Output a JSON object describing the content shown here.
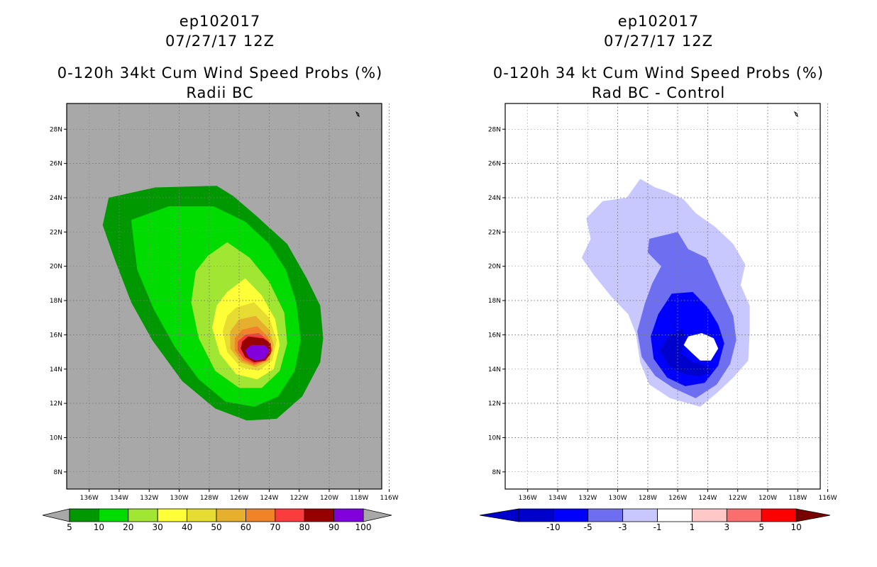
{
  "left_panel": {
    "title_lines": [
      "ep102017",
      "07/27/17 12Z",
      "0-120h 34kt Cum Wind Speed Probs (%)",
      "Radii BC"
    ],
    "background_color": "#a8a8a8",
    "colorbar": {
      "colors": [
        "#009800",
        "#00dc00",
        "#a0e632",
        "#ffff37",
        "#e6dc32",
        "#e6af2d",
        "#f08228",
        "#fa3c3c",
        "#960000",
        "#8200dc"
      ],
      "labels": [
        "5",
        "10",
        "20",
        "30",
        "40",
        "50",
        "60",
        "70",
        "80",
        "90",
        "100"
      ]
    }
  },
  "right_panel": {
    "title_lines": [
      "ep102017",
      "07/27/17 12Z",
      "0-120h 34 kt Cum Wind Speed Probs (%)",
      "Rad BC - Control"
    ],
    "background_color": "#ffffff",
    "colorbar": {
      "colors": [
        "#0000cd",
        "#0000ff",
        "#6e6ef0",
        "#c8c8ff",
        "#ffffff",
        "#ffc8c8",
        "#fa6e6e",
        "#ff0000",
        "#780000"
      ],
      "labels": [
        "-10",
        "-5",
        "-3",
        "-1",
        "1",
        "3",
        "5",
        "10"
      ]
    }
  },
  "axes": {
    "lon_ticks": [
      "136W",
      "134W",
      "132W",
      "130W",
      "128W",
      "126W",
      "124W",
      "122W",
      "120W",
      "118W",
      "116W"
    ],
    "lat_ticks": [
      "8N",
      "10N",
      "12N",
      "14N",
      "16N",
      "18N",
      "20N",
      "22N",
      "24N",
      "26N",
      "28N"
    ]
  },
  "chart_data": [
    {
      "type": "heatmap",
      "title": "0-120h 34kt Cum Wind Speed Probs (%)",
      "subtitle": "Radii BC",
      "storm": "ep102017",
      "valid_time": "07/27/17 12Z",
      "xlim": [
        -137.5,
        -116.5
      ],
      "ylim": [
        7.0,
        29.5
      ],
      "units": "%",
      "contour_levels": [
        5,
        10,
        20,
        30,
        40,
        50,
        60,
        70,
        80,
        90,
        100
      ],
      "regions": [
        {
          "level": 5,
          "polygon": [
            [
              -134.7,
              24.0
            ],
            [
              -131.6,
              24.6
            ],
            [
              -127.5,
              24.7
            ],
            [
              -126.4,
              24.1
            ],
            [
              -124.8,
              22.9
            ],
            [
              -122.8,
              21.3
            ],
            [
              -121.5,
              19.3
            ],
            [
              -120.6,
              17.7
            ],
            [
              -120.4,
              15.8
            ],
            [
              -120.6,
              14.4
            ],
            [
              -121.8,
              12.4
            ],
            [
              -123.5,
              11.1
            ],
            [
              -125.5,
              11.0
            ],
            [
              -127.6,
              11.7
            ],
            [
              -129.8,
              13.3
            ],
            [
              -131.8,
              15.7
            ],
            [
              -133.2,
              17.9
            ],
            [
              -134.3,
              20.4
            ],
            [
              -135.1,
              22.4
            ]
          ]
        },
        {
          "level": 10,
          "polygon": [
            [
              -133.2,
              22.7
            ],
            [
              -130.7,
              23.5
            ],
            [
              -127.7,
              23.5
            ],
            [
              -125.6,
              22.6
            ],
            [
              -124.0,
              21.3
            ],
            [
              -122.9,
              19.8
            ],
            [
              -122.2,
              17.9
            ],
            [
              -121.9,
              15.7
            ],
            [
              -122.3,
              13.9
            ],
            [
              -123.4,
              12.4
            ],
            [
              -125.0,
              11.8
            ],
            [
              -126.9,
              12.1
            ],
            [
              -128.7,
              13.4
            ],
            [
              -130.3,
              15.3
            ],
            [
              -131.7,
              17.5
            ],
            [
              -132.8,
              19.8
            ]
          ]
        },
        {
          "level": 20,
          "polygon": [
            [
              -128.1,
              20.6
            ],
            [
              -126.8,
              21.4
            ],
            [
              -125.3,
              20.5
            ],
            [
              -124.0,
              19.1
            ],
            [
              -123.0,
              17.3
            ],
            [
              -122.8,
              15.5
            ],
            [
              -123.3,
              13.9
            ],
            [
              -124.5,
              12.9
            ],
            [
              -126.0,
              12.9
            ],
            [
              -127.6,
              13.9
            ],
            [
              -128.7,
              15.8
            ],
            [
              -129.2,
              17.9
            ],
            [
              -128.9,
              19.7
            ]
          ]
        },
        {
          "level": 30,
          "polygon": [
            [
              -126.8,
              18.5
            ],
            [
              -125.6,
              19.3
            ],
            [
              -124.5,
              18.3
            ],
            [
              -123.6,
              16.9
            ],
            [
              -123.3,
              15.4
            ],
            [
              -123.7,
              14.0
            ],
            [
              -124.8,
              13.4
            ],
            [
              -126.2,
              13.7
            ],
            [
              -127.3,
              14.9
            ],
            [
              -127.8,
              16.4
            ],
            [
              -127.5,
              17.7
            ]
          ]
        },
        {
          "level": 40,
          "polygon": [
            [
              -126.2,
              17.6
            ],
            [
              -125.0,
              17.9
            ],
            [
              -124.0,
              17.0
            ],
            [
              -123.5,
              15.7
            ],
            [
              -123.8,
              14.5
            ],
            [
              -124.7,
              13.9
            ],
            [
              -125.9,
              14.1
            ],
            [
              -126.8,
              15.0
            ],
            [
              -127.1,
              16.2
            ],
            [
              -126.8,
              17.1
            ]
          ]
        },
        {
          "level": 50,
          "polygon": [
            [
              -126.0,
              16.9
            ],
            [
              -124.9,
              17.1
            ],
            [
              -124.0,
              16.3
            ],
            [
              -123.7,
              15.4
            ],
            [
              -124.0,
              14.5
            ],
            [
              -124.9,
              14.1
            ],
            [
              -125.9,
              14.4
            ],
            [
              -126.6,
              15.2
            ],
            [
              -126.6,
              16.2
            ]
          ]
        },
        {
          "level": 60,
          "polygon": [
            [
              -125.8,
              16.3
            ],
            [
              -124.8,
              16.5
            ],
            [
              -124.1,
              15.9
            ],
            [
              -123.8,
              15.2
            ],
            [
              -124.2,
              14.5
            ],
            [
              -125.0,
              14.2
            ],
            [
              -125.8,
              14.5
            ],
            [
              -126.3,
              15.1
            ],
            [
              -126.3,
              15.8
            ]
          ]
        },
        {
          "level": 70,
          "polygon": [
            [
              -125.6,
              16.0
            ],
            [
              -124.7,
              16.1
            ],
            [
              -124.1,
              15.7
            ],
            [
              -123.8,
              15.1
            ],
            [
              -124.2,
              14.5
            ],
            [
              -125.0,
              14.3
            ],
            [
              -125.7,
              14.6
            ],
            [
              -126.1,
              15.1
            ],
            [
              -126.1,
              15.6
            ]
          ]
        },
        {
          "level": 80,
          "polygon": [
            [
              -125.4,
              15.9
            ],
            [
              -124.4,
              15.8
            ],
            [
              -123.9,
              15.5
            ],
            [
              -123.9,
              14.9
            ],
            [
              -124.3,
              14.5
            ],
            [
              -125.0,
              14.4
            ],
            [
              -125.6,
              14.7
            ],
            [
              -125.9,
              15.2
            ],
            [
              -125.8,
              15.6
            ]
          ]
        },
        {
          "level": 90,
          "polygon": [
            [
              -125.2,
              15.4
            ],
            [
              -124.3,
              15.4
            ],
            [
              -124.0,
              15.1
            ],
            [
              -124.3,
              14.6
            ],
            [
              -124.9,
              14.5
            ],
            [
              -125.4,
              14.7
            ],
            [
              -125.6,
              15.1
            ]
          ]
        }
      ]
    },
    {
      "type": "heatmap",
      "title": "0-120h 34 kt Cum Wind Speed Probs (%)",
      "subtitle": "Rad BC - Control",
      "storm": "ep102017",
      "valid_time": "07/27/17 12Z",
      "xlim": [
        -137.5,
        -116.5
      ],
      "ylim": [
        7.0,
        29.5
      ],
      "units": "%",
      "contour_levels": [
        -10,
        -5,
        -3,
        -1,
        1,
        3,
        5,
        10
      ],
      "regions": [
        {
          "level": -1,
          "polygon": [
            [
              -129.4,
              24.0
            ],
            [
              -128.5,
              25.1
            ],
            [
              -127.5,
              24.6
            ],
            [
              -126.8,
              24.4
            ],
            [
              -125.6,
              23.9
            ],
            [
              -124.8,
              23.1
            ],
            [
              -123.5,
              22.3
            ],
            [
              -122.3,
              21.3
            ],
            [
              -121.5,
              20.1
            ],
            [
              -121.8,
              18.9
            ],
            [
              -121.2,
              17.7
            ],
            [
              -121.2,
              16.2
            ],
            [
              -121.3,
              14.5
            ],
            [
              -122.3,
              13.5
            ],
            [
              -123.4,
              12.6
            ],
            [
              -124.5,
              11.8
            ],
            [
              -126.5,
              12.3
            ],
            [
              -127.9,
              13.1
            ],
            [
              -128.5,
              14.4
            ],
            [
              -128.8,
              16.1
            ],
            [
              -129.3,
              17.2
            ],
            [
              -130.4,
              18.2
            ],
            [
              -131.6,
              19.5
            ],
            [
              -132.4,
              20.5
            ],
            [
              -131.8,
              21.6
            ],
            [
              -132.1,
              22.8
            ],
            [
              -131.0,
              23.8
            ]
          ]
        },
        {
          "level": -3,
          "polygon": [
            [
              -127.9,
              21.6
            ],
            [
              -126.0,
              22.0
            ],
            [
              -125.3,
              21.0
            ],
            [
              -124.1,
              20.5
            ],
            [
              -123.6,
              19.6
            ],
            [
              -123.0,
              18.4
            ],
            [
              -122.3,
              17.1
            ],
            [
              -122.1,
              15.7
            ],
            [
              -122.5,
              14.3
            ],
            [
              -123.4,
              13.1
            ],
            [
              -124.8,
              12.3
            ],
            [
              -126.3,
              12.9
            ],
            [
              -127.5,
              13.6
            ],
            [
              -128.4,
              14.7
            ],
            [
              -128.7,
              16.2
            ],
            [
              -128.2,
              17.8
            ],
            [
              -127.7,
              19.0
            ],
            [
              -127.1,
              20.0
            ],
            [
              -128.0,
              20.8
            ]
          ]
        },
        {
          "level": -5,
          "polygon": [
            [
              -126.4,
              18.4
            ],
            [
              -125.0,
              18.5
            ],
            [
              -124.0,
              17.6
            ],
            [
              -123.3,
              16.6
            ],
            [
              -122.9,
              15.5
            ],
            [
              -123.3,
              14.2
            ],
            [
              -124.2,
              13.2
            ],
            [
              -125.5,
              13.0
            ],
            [
              -126.7,
              13.5
            ],
            [
              -127.6,
              14.6
            ],
            [
              -127.8,
              15.9
            ],
            [
              -127.3,
              17.2
            ]
          ]
        },
        {
          "level": -10,
          "polygon": [
            [
              -126.7,
              15.8
            ],
            [
              -125.7,
              16.4
            ],
            [
              -125.5,
              15.6
            ],
            [
              -125.8,
              14.9
            ],
            [
              -125.0,
              14.4
            ],
            [
              -124.0,
              14.2
            ],
            [
              -123.8,
              13.8
            ],
            [
              -124.6,
              13.6
            ],
            [
              -125.6,
              13.7
            ],
            [
              -126.6,
              14.2
            ],
            [
              -127.2,
              15.1
            ]
          ]
        },
        {
          "level": 1,
          "polygon": [
            [
              -125.3,
              15.9
            ],
            [
              -124.4,
              16.1
            ],
            [
              -123.6,
              15.8
            ],
            [
              -123.3,
              15.2
            ],
            [
              -123.8,
              14.5
            ],
            [
              -124.5,
              14.5
            ],
            [
              -125.0,
              14.9
            ],
            [
              -125.6,
              15.4
            ]
          ]
        }
      ]
    }
  ]
}
